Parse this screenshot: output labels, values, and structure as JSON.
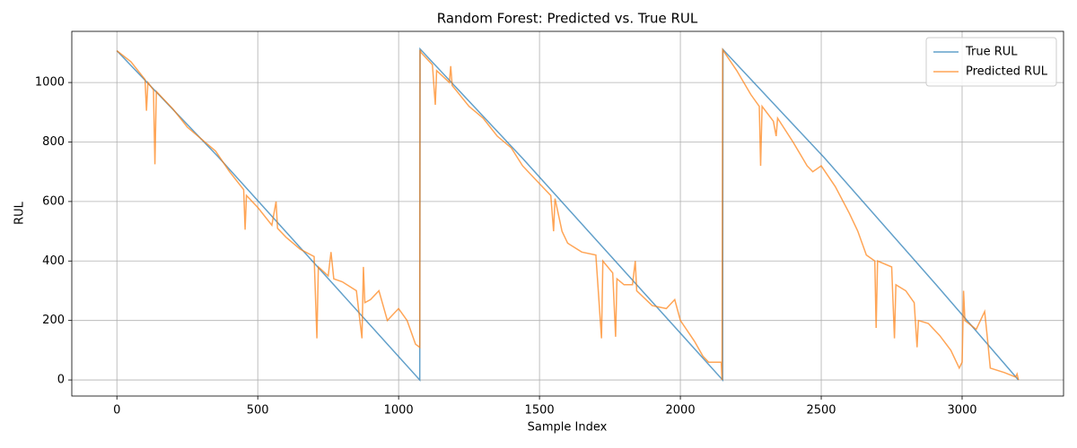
{
  "chart_data": {
    "type": "line",
    "title": "Random Forest: Predicted vs. True RUL",
    "x_label": "Sample Index",
    "y_label": "RUL",
    "xlim": [
      -160,
      3360
    ],
    "ylim": [
      -54,
      1172
    ],
    "xticks": [
      0,
      500,
      1000,
      1500,
      2000,
      2500,
      3000
    ],
    "yticks": [
      0,
      200,
      400,
      600,
      800,
      1000
    ],
    "grid": true,
    "legend": "upper right",
    "series": [
      {
        "name": "True RUL",
        "color": "#1f77b4",
        "x": [
          0,
          360,
          1075,
          1076,
          1440,
          2150,
          2151,
          2510,
          2910,
          3200
        ],
        "values": [
          1107,
          750,
          0,
          1113,
          745,
          0,
          1111,
          748,
          318,
          0
        ]
      },
      {
        "name": "Predicted RUL",
        "color": "#ff7f0e",
        "x": [
          0,
          50,
          100,
          105,
          110,
          130,
          135,
          140,
          200,
          250,
          300,
          350,
          400,
          450,
          455,
          460,
          500,
          550,
          565,
          570,
          600,
          650,
          700,
          710,
          715,
          750,
          760,
          770,
          800,
          850,
          870,
          875,
          880,
          900,
          930,
          960,
          1000,
          1030,
          1060,
          1075,
          1076,
          1080,
          1120,
          1130,
          1135,
          1180,
          1185,
          1190,
          1250,
          1300,
          1350,
          1400,
          1440,
          1500,
          1540,
          1550,
          1555,
          1580,
          1600,
          1650,
          1700,
          1720,
          1725,
          1760,
          1770,
          1775,
          1800,
          1830,
          1840,
          1845,
          1900,
          1950,
          1980,
          2000,
          2050,
          2080,
          2100,
          2145,
          2148,
          2150,
          2200,
          2250,
          2280,
          2285,
          2290,
          2330,
          2340,
          2345,
          2400,
          2450,
          2470,
          2500,
          2550,
          2600,
          2630,
          2660,
          2690,
          2695,
          2700,
          2750,
          2760,
          2765,
          2800,
          2830,
          2840,
          2845,
          2880,
          2920,
          2960,
          2990,
          3000,
          3005,
          3010,
          3050,
          3080,
          3090,
          3100,
          3150,
          3190,
          3195,
          3200
        ],
        "values": [
          1107,
          1070,
          1010,
          905,
          1000,
          975,
          725,
          970,
          910,
          850,
          810,
          770,
          700,
          640,
          505,
          620,
          580,
          520,
          600,
          510,
          480,
          440,
          415,
          140,
          380,
          350,
          430,
          340,
          330,
          300,
          140,
          380,
          260,
          270,
          300,
          200,
          240,
          200,
          120,
          110,
          1110,
          1100,
          1060,
          925,
          1040,
          1000,
          1055,
          990,
          920,
          880,
          820,
          780,
          720,
          660,
          620,
          500,
          610,
          500,
          460,
          430,
          420,
          140,
          400,
          360,
          145,
          340,
          320,
          320,
          400,
          300,
          250,
          240,
          270,
          200,
          130,
          80,
          60,
          60,
          0,
          1110,
          1040,
          960,
          920,
          720,
          920,
          870,
          820,
          880,
          800,
          720,
          700,
          720,
          650,
          560,
          500,
          420,
          400,
          175,
          400,
          380,
          140,
          320,
          300,
          260,
          110,
          200,
          190,
          150,
          100,
          40,
          60,
          300,
          200,
          170,
          230,
          140,
          40,
          25,
          10,
          20,
          0
        ]
      }
    ]
  }
}
